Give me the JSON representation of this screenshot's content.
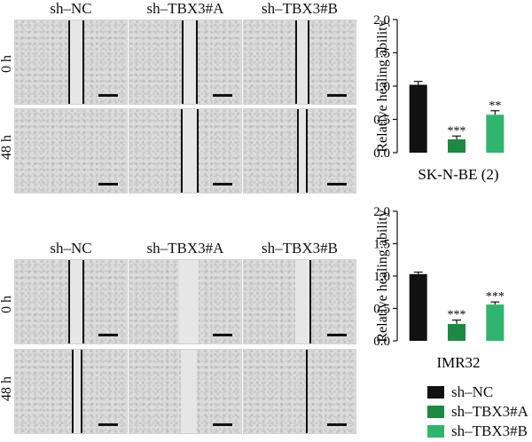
{
  "panels": {
    "col_labels": [
      "sh–NC",
      "sh–TBX3#A",
      "sh–TBX3#B"
    ],
    "row_labels": [
      "0 h",
      "48 h"
    ]
  },
  "colors": {
    "sh_nc": "#111111",
    "sh_tbx3_a": "#1c8a43",
    "sh_tbx3_b": "#2fb56e"
  },
  "chart_data": [
    {
      "type": "bar",
      "title": "SK-N-BE (2)",
      "ylabel": "Relative healing ability",
      "categories": [
        "sh–NC",
        "sh–TBX3#A",
        "sh–TBX3#B"
      ],
      "values": [
        1.02,
        0.2,
        0.57
      ],
      "errors": [
        0.05,
        0.05,
        0.06
      ],
      "annotations": [
        "",
        "***",
        "**"
      ],
      "ylim": [
        0,
        2.0
      ],
      "yticks": [
        "0.0",
        "0.5",
        "1.0",
        "1.5",
        "2.0"
      ]
    },
    {
      "type": "bar",
      "title": "IMR32",
      "ylabel": "Relative healing ability",
      "categories": [
        "sh–NC",
        "sh–TBX3#A",
        "sh–TBX3#B"
      ],
      "values": [
        1.03,
        0.26,
        0.56
      ],
      "errors": [
        0.03,
        0.06,
        0.04
      ],
      "annotations": [
        "",
        "***",
        "***"
      ],
      "ylim": [
        0,
        2.0
      ],
      "yticks": [
        "0.0",
        "0.5",
        "1.0",
        "1.5",
        "2.0"
      ]
    }
  ],
  "legend": [
    {
      "label": "sh–NC",
      "color": "#111111"
    },
    {
      "label": "sh–TBX3#A",
      "color": "#1c8a43"
    },
    {
      "label": "sh–TBX3#B",
      "color": "#2fb56e"
    }
  ]
}
